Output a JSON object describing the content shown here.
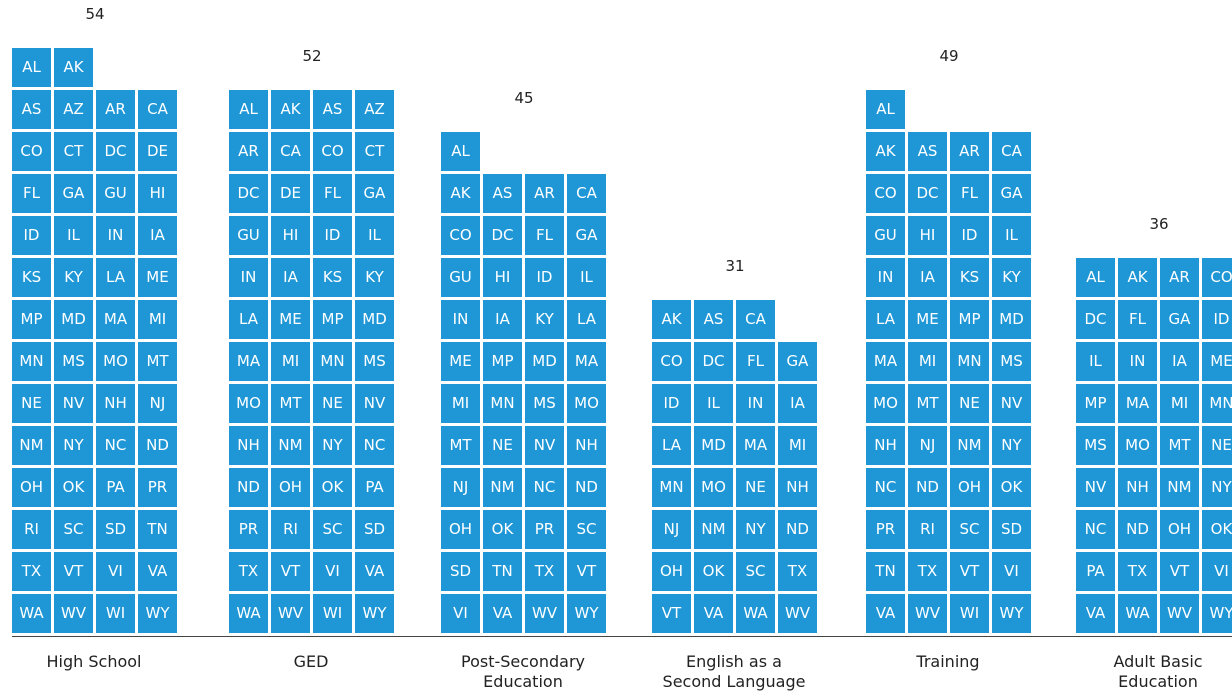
{
  "chart_data": {
    "type": "bar",
    "colors": {
      "cell": "#1f97d6",
      "cell_text": "#ffffff",
      "baseline": "#444444"
    },
    "categories": [
      "High School",
      "GED",
      "Post-Secondary\nEducation",
      "English as a\nSecond Language",
      "Training",
      "Adult Basic\nEducation"
    ],
    "values": [
      54,
      52,
      45,
      31,
      49,
      36
    ],
    "columns": [
      {
        "label_lines": [
          "High School"
        ],
        "count": 54,
        "states": [
          "AL",
          "AK",
          "AS",
          "AZ",
          "AR",
          "CA",
          "CO",
          "CT",
          "DC",
          "DE",
          "FL",
          "GA",
          "GU",
          "HI",
          "ID",
          "IL",
          "IN",
          "IA",
          "KS",
          "KY",
          "LA",
          "ME",
          "MP",
          "MD",
          "MA",
          "MI",
          "MN",
          "MS",
          "MO",
          "MT",
          "NE",
          "NV",
          "NH",
          "NJ",
          "NM",
          "NY",
          "NC",
          "ND",
          "OH",
          "OK",
          "PA",
          "PR",
          "RI",
          "SC",
          "SD",
          "TN",
          "TX",
          "VT",
          "VI",
          "VA",
          "WA",
          "WV",
          "WI",
          "WY"
        ]
      },
      {
        "label_lines": [
          "GED"
        ],
        "count": 52,
        "states": [
          "AL",
          "AK",
          "AS",
          "AZ",
          "AR",
          "CA",
          "CO",
          "CT",
          "DC",
          "DE",
          "FL",
          "GA",
          "GU",
          "HI",
          "ID",
          "IL",
          "IN",
          "IA",
          "KS",
          "KY",
          "LA",
          "ME",
          "MP",
          "MD",
          "MA",
          "MI",
          "MN",
          "MS",
          "MO",
          "MT",
          "NE",
          "NV",
          "NH",
          "NM",
          "NY",
          "NC",
          "ND",
          "OH",
          "OK",
          "PA",
          "PR",
          "RI",
          "SC",
          "SD",
          "TX",
          "VT",
          "VI",
          "VA",
          "WA",
          "WV",
          "WI",
          "WY"
        ]
      },
      {
        "label_lines": [
          "Post-Secondary",
          "Education"
        ],
        "count": 45,
        "states": [
          "AL",
          "AK",
          "AS",
          "AR",
          "CA",
          "CO",
          "DC",
          "FL",
          "GA",
          "GU",
          "HI",
          "ID",
          "IL",
          "IN",
          "IA",
          "KY",
          "LA",
          "ME",
          "MP",
          "MD",
          "MA",
          "MI",
          "MN",
          "MS",
          "MO",
          "MT",
          "NE",
          "NV",
          "NH",
          "NJ",
          "NM",
          "NC",
          "ND",
          "OH",
          "OK",
          "PR",
          "SC",
          "SD",
          "TN",
          "TX",
          "VT",
          "VI",
          "VA",
          "WV",
          "WY"
        ]
      },
      {
        "label_lines": [
          "English as a",
          "Second Language"
        ],
        "count": 31,
        "states": [
          "AK",
          "AS",
          "CA",
          "CO",
          "DC",
          "FL",
          "GA",
          "ID",
          "IL",
          "IN",
          "IA",
          "LA",
          "MD",
          "MA",
          "MI",
          "MN",
          "MO",
          "NE",
          "NH",
          "NJ",
          "NM",
          "NY",
          "ND",
          "OH",
          "OK",
          "SC",
          "TX",
          "VT",
          "VA",
          "WA",
          "WV"
        ]
      },
      {
        "label_lines": [
          "Training"
        ],
        "count": 49,
        "states": [
          "AL",
          "AK",
          "AS",
          "AR",
          "CA",
          "CO",
          "DC",
          "FL",
          "GA",
          "GU",
          "HI",
          "ID",
          "IL",
          "IN",
          "IA",
          "KS",
          "KY",
          "LA",
          "ME",
          "MP",
          "MD",
          "MA",
          "MI",
          "MN",
          "MS",
          "MO",
          "MT",
          "NE",
          "NV",
          "NH",
          "NJ",
          "NM",
          "NY",
          "NC",
          "ND",
          "OH",
          "OK",
          "PR",
          "RI",
          "SC",
          "SD",
          "TN",
          "TX",
          "VT",
          "VI",
          "VA",
          "WV",
          "WI",
          "WY"
        ]
      },
      {
        "label_lines": [
          "Adult Basic",
          "Education"
        ],
        "count": 36,
        "states": [
          "AL",
          "AK",
          "AR",
          "CO",
          "DC",
          "FL",
          "GA",
          "ID",
          "IL",
          "IN",
          "IA",
          "ME",
          "MP",
          "MA",
          "MI",
          "MN",
          "MS",
          "MO",
          "MT",
          "NE",
          "NV",
          "NH",
          "NM",
          "NY",
          "NC",
          "ND",
          "OH",
          "OK",
          "PA",
          "TX",
          "VT",
          "VI",
          "VA",
          "WA",
          "WV",
          "WY"
        ]
      }
    ]
  }
}
